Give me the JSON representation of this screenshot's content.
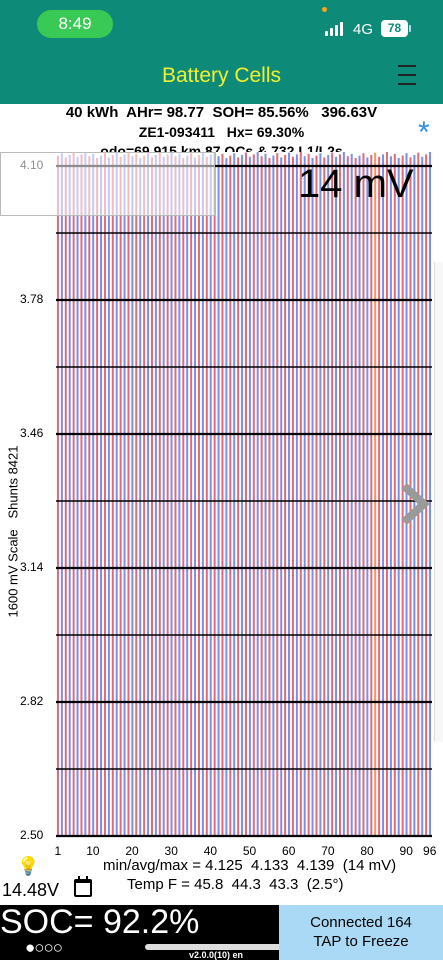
{
  "status_bar": {
    "time": "8:49",
    "network": "4G",
    "battery_level": "78"
  },
  "header": {
    "title": "Battery Cells"
  },
  "info": {
    "line1": "40 kWh  AHr= 98.77  SOH= 85.56%   396.63V",
    "line2": "ZE1-093411   Hx= 69.30%",
    "line3": "odo=69,915 km 87 QCs & 732 L1/L2s",
    "star": "*"
  },
  "chart_data": {
    "type": "bar",
    "ylabel": "1600 mV Scale   Shunts 8421",
    "ylim": [
      2.5,
      4.1
    ],
    "y_ticks": [
      "4.10",
      "3.78",
      "3.46",
      "3.14",
      "2.82",
      "2.50"
    ],
    "x_ticks": [
      "1",
      "10",
      "20",
      "30",
      "40",
      "50",
      "60",
      "70",
      "80",
      "90",
      "96"
    ],
    "cell_count": 96,
    "cell_min": 4.125,
    "cell_max": 4.139,
    "overlay_label": "14 mV",
    "colors": {
      "odd": "#e06a78",
      "even": "#7c8ee6",
      "highlight": "#f3955a",
      "grid": "#000000"
    },
    "highlight_cells": [
      82
    ]
  },
  "stats": {
    "line1": "min/avg/max = 4.125  4.133  4.139  (14 mV)",
    "line2": "Temp F = 45.8  44.3  43.3  (2.5°)"
  },
  "aux_voltage": "14.48V",
  "soc": {
    "text": "SOC= 92.2%",
    "page_dots": "●○○○"
  },
  "version": "v2.0.0(10) en",
  "connection": {
    "line1": "Connected 164",
    "line2": "TAP to Freeze"
  }
}
